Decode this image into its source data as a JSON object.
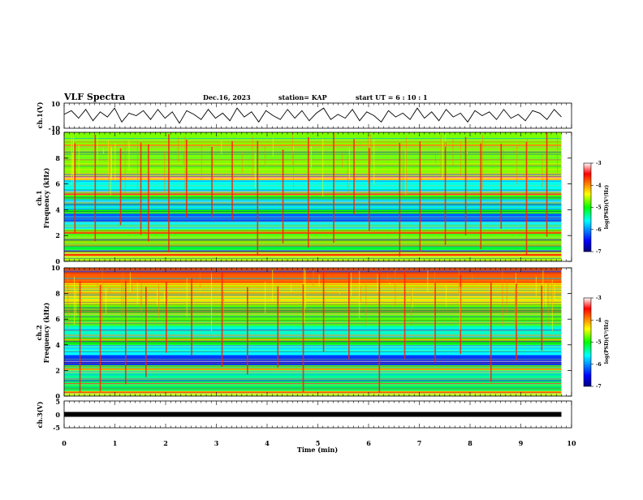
{
  "header": {
    "title": "VLF Spectra",
    "date": "Dec.16, 2023",
    "station": "station= KAP",
    "start": "start  UT =   6 : 10 : 1"
  },
  "chart_data": [
    {
      "type": "line",
      "ylabel": "ch.1(V)",
      "ylim": [
        -10,
        10
      ],
      "y_ticks": [
        "10",
        "-10"
      ],
      "series": [
        {
          "values": [
            1,
            4,
            -2,
            5,
            -4,
            3,
            -1,
            6,
            -5,
            2,
            0,
            4,
            -3,
            5,
            -2,
            3,
            -6,
            4,
            1,
            -3,
            5,
            -2,
            2,
            -4,
            6,
            -1,
            3,
            -5,
            4,
            0,
            -3,
            5,
            -2,
            4,
            -4,
            2,
            6,
            -3,
            1,
            -2,
            5,
            -4,
            3,
            0,
            -5,
            4,
            -1,
            2,
            -3,
            6,
            -2,
            3,
            -4,
            5,
            -1,
            2,
            -5,
            4,
            0,
            3,
            -3,
            5,
            -2,
            1,
            -4,
            4,
            2,
            -3,
            5,
            -1
          ]
        }
      ]
    },
    {
      "type": "heatmap",
      "ylabel_top": "ch.1",
      "ylabel": "Frequency (kHz)",
      "ylim": [
        0,
        10
      ],
      "y_ticks": [
        "0",
        "2",
        "4",
        "6",
        "8",
        "10"
      ],
      "colorbar": {
        "label": "log(PSD)(V²/Hz)",
        "ticks": [
          "-3",
          "-4",
          "-5",
          "-6",
          "-7"
        ],
        "range": [
          -7,
          -3
        ]
      },
      "bands": [
        {
          "from": 0,
          "to": 0.3,
          "value": -4.6
        },
        {
          "from": 0.3,
          "to": 0.7,
          "value": -4.3
        },
        {
          "from": 0.7,
          "to": 1.3,
          "value": -5.1
        },
        {
          "from": 1.3,
          "to": 2.0,
          "value": -4.7
        },
        {
          "from": 2.0,
          "to": 2.5,
          "value": -4.8
        },
        {
          "from": 2.5,
          "to": 3.1,
          "value": -5.6
        },
        {
          "from": 3.1,
          "to": 3.7,
          "value": -6.2
        },
        {
          "from": 3.7,
          "to": 4.0,
          "value": -5.0
        },
        {
          "from": 4.0,
          "to": 4.8,
          "value": -5.7
        },
        {
          "from": 4.8,
          "to": 5.1,
          "value": -5.0
        },
        {
          "from": 5.1,
          "to": 5.4,
          "value": -4.6
        },
        {
          "from": 5.4,
          "to": 6.3,
          "value": -5.6
        },
        {
          "from": 6.3,
          "to": 6.8,
          "value": -4.3
        },
        {
          "from": 6.8,
          "to": 10.0,
          "value": -4.7
        }
      ],
      "lines": [
        {
          "freq": 0.5,
          "value": -3.6
        },
        {
          "freq": 2.2,
          "value": -3.7
        },
        {
          "freq": 5.2,
          "value": -3.4
        },
        {
          "freq": 6.5,
          "value": -3.2
        },
        {
          "freq": 9.0,
          "value": -4.0
        }
      ],
      "spikes_min": [
        0.2,
        0.6,
        1.1,
        1.5,
        1.65,
        2.05,
        2.4,
        2.9,
        3.3,
        3.8,
        4.3,
        4.8,
        5.3,
        5.7,
        6.0,
        6.6,
        7.0,
        7.5,
        7.9,
        8.2,
        8.6,
        9.1,
        9.5
      ]
    },
    {
      "type": "heatmap",
      "ylabel_top": "ch.2",
      "ylabel": "Frequency (kHz)",
      "ylim": [
        0,
        10
      ],
      "y_ticks": [
        "0",
        "2",
        "4",
        "6",
        "8",
        "10"
      ],
      "colorbar": {
        "label": "log(PSD)(V²/Hz)",
        "ticks": [
          "-3",
          "-4",
          "-5",
          "-6",
          "-7"
        ],
        "range": [
          -7,
          -3
        ]
      },
      "bands": [
        {
          "from": 0,
          "to": 0.4,
          "value": -4.4
        },
        {
          "from": 0.4,
          "to": 1.2,
          "value": -5.2
        },
        {
          "from": 1.2,
          "to": 2.0,
          "value": -5.4
        },
        {
          "from": 2.0,
          "to": 2.4,
          "value": -4.8
        },
        {
          "from": 2.4,
          "to": 3.2,
          "value": -6.3
        },
        {
          "from": 3.2,
          "to": 4.0,
          "value": -5.6
        },
        {
          "from": 4.0,
          "to": 4.6,
          "value": -5.0
        },
        {
          "from": 4.6,
          "to": 5.5,
          "value": -5.5
        },
        {
          "from": 5.5,
          "to": 7.2,
          "value": -4.8
        },
        {
          "from": 7.2,
          "to": 8.8,
          "value": -4.3
        },
        {
          "from": 8.8,
          "to": 10.0,
          "value": -3.8
        }
      ],
      "lines": [
        {
          "freq": 0.3,
          "value": -3.8
        },
        {
          "freq": 2.1,
          "value": -4.0
        },
        {
          "freq": 4.4,
          "value": -4.1
        }
      ],
      "spikes_min": [
        0.3,
        0.7,
        1.2,
        1.6,
        2.0,
        2.5,
        3.1,
        3.6,
        4.2,
        4.7,
        5.1,
        5.6,
        6.2,
        6.7,
        7.3,
        7.8,
        8.4,
        8.9,
        9.4
      ]
    },
    {
      "type": "line",
      "ylabel": "ch.3(V)",
      "ylim": [
        -5,
        5
      ],
      "y_ticks": [
        "5",
        "0",
        "-5"
      ],
      "series": [
        {
          "values": [
            0,
            0
          ]
        }
      ]
    }
  ],
  "x_axis": {
    "label": "Time (min)",
    "range": [
      0,
      10
    ],
    "data_end": 9.8,
    "ticks": [
      "0",
      "1",
      "2",
      "3",
      "4",
      "5",
      "6",
      "7",
      "8",
      "9",
      "10"
    ]
  }
}
